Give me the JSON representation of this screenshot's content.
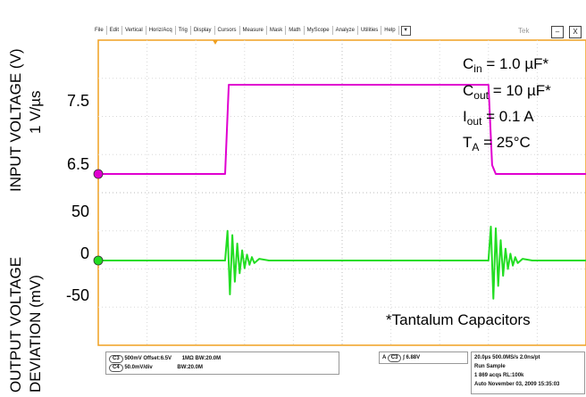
{
  "toolbar": {
    "menu": [
      "File",
      "Edit",
      "Vertical",
      "Horiz/Acq",
      "Trig",
      "Display",
      "Cursors",
      "Measure",
      "Mask",
      "Math",
      "MyScope",
      "Analyze",
      "Utilities",
      "Help"
    ],
    "menu_arrow": "▼",
    "brand": "Tek",
    "minimize": "–",
    "close": "X"
  },
  "axes": {
    "upper_label_line1": "INPUT VOLTAGE (V)",
    "upper_label_line2": "1 V/µs",
    "lower_label_line1": "OUTPUT VOLTAGE",
    "lower_label_line2": "DEVIATION (mV)"
  },
  "annotation": {
    "cin_var": "C",
    "cin_sub": "in",
    "cin_val": " = 1.0 µF*",
    "cout_var": "C",
    "cout_sub": "out",
    "cout_val": " = 10 µF*",
    "iout_var": "I",
    "iout_sub": "out",
    "iout_val": " = 0.1 A",
    "ta_var": "T",
    "ta_sub": "A",
    "ta_val": " = 25°C",
    "footnote": "*Tantalum Capacitors"
  },
  "status": {
    "ch3_tag": "C3",
    "ch3_text": "500mV  Offset:6.5V",
    "ch3_bw": "1MΩ  BW:20.0M",
    "ch4_tag": "C4",
    "ch4_text": "50.0mV/div",
    "ch4_bw": "BW:20.0M",
    "trig_a": "A",
    "trig_tag": "C3",
    "trig_text": "∫ 6.88V",
    "time_line1": "20.0µs  500.0MS/s      2.0ns/pt",
    "time_line2": "Run       Sample",
    "time_line3": "1 869 acqs                  RL:100k",
    "time_line4": "Auto   November 03, 2009   15:35:03"
  },
  "chart_data": [
    {
      "type": "line",
      "title": "",
      "xlabel": "",
      "ylabel": "INPUT VOLTAGE (V) 1 V/µs",
      "x_units": "µs",
      "xlim": [
        0,
        200
      ],
      "ylim": [
        6.0,
        8.0
      ],
      "yticks": [
        7.5,
        6.5
      ],
      "grid": true,
      "series": [
        {
          "color": "#e000d0",
          "x": [
            0,
            52,
            53.5,
            56,
            160,
            161.5,
            163,
            200
          ],
          "y": [
            6.5,
            6.5,
            7.5,
            7.5,
            7.5,
            6.6,
            6.5,
            6.5
          ]
        }
      ]
    },
    {
      "type": "line",
      "title": "",
      "xlabel": "",
      "ylabel": "OUTPUT VOLTAGE DEVIATION (mV)",
      "x_units": "µs",
      "xlim": [
        0,
        200
      ],
      "ylim": [
        -100,
        100
      ],
      "yticks": [
        50,
        0,
        -50
      ],
      "grid": true,
      "series": [
        {
          "color": "#22dd22",
          "x": [
            0,
            52,
            53,
            54,
            55,
            56,
            57,
            58,
            59,
            60,
            61,
            62,
            63,
            64,
            66,
            70,
            160,
            161,
            162,
            163,
            164,
            165,
            166,
            167,
            168,
            169,
            170,
            171,
            172,
            174,
            178,
            200
          ],
          "y": [
            0,
            0,
            35,
            -40,
            30,
            -25,
            20,
            -15,
            12,
            -9,
            7,
            -5,
            4,
            -3,
            2,
            0,
            0,
            40,
            -45,
            38,
            -30,
            24,
            -18,
            14,
            -10,
            8,
            -6,
            4,
            -3,
            2,
            0,
            0
          ]
        }
      ]
    }
  ]
}
